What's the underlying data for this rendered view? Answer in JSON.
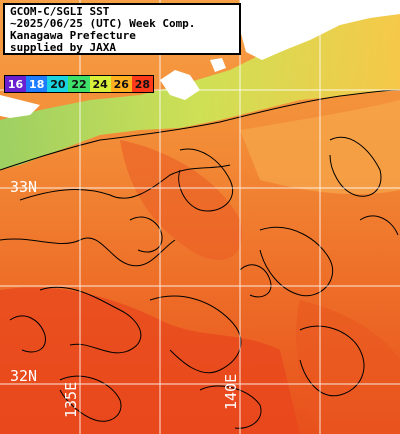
{
  "title": {
    "line1": "GCOM-C/SGLI SST",
    "line2": "~2025/06/25 (UTC) Week Comp.",
    "line3": "Kanagawa Prefecture",
    "line4": "supplied by JAXA"
  },
  "legend": {
    "values": [
      "16",
      "18",
      "20",
      "22",
      "24",
      "26",
      "28"
    ],
    "colors": [
      "#6a1fd0",
      "#1e7cff",
      "#19d3e0",
      "#3ee06a",
      "#d8f03a",
      "#ffb020",
      "#ff3a1a"
    ]
  },
  "grid_labels": {
    "lat_top": "33N",
    "lat_bottom": "32N",
    "lon_left": "135E",
    "lon_right": "140E"
  },
  "colors": {
    "land": "#ffffff",
    "coast_green": "#9ce07a",
    "sst_warm": "#f07a2c",
    "sst_hot": "#e8401a",
    "grid": "#ffffff",
    "contour": "#000000"
  }
}
